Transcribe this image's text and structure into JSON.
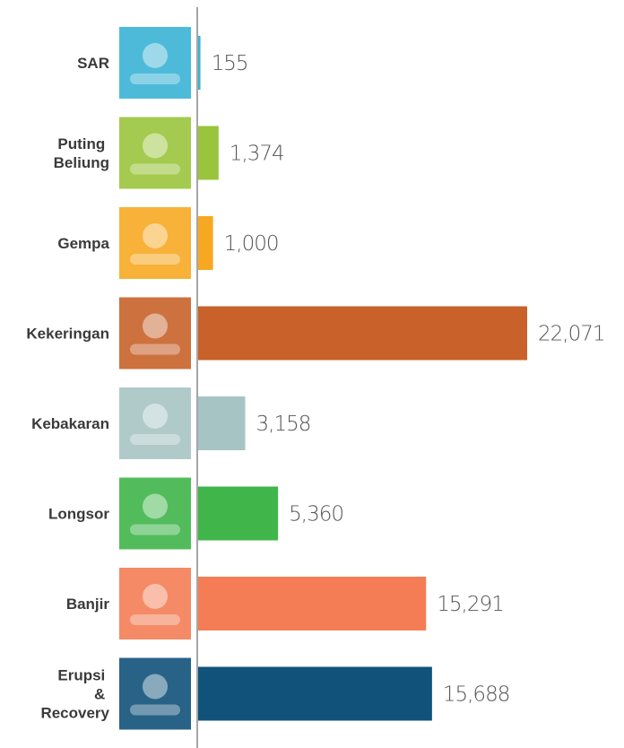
{
  "chart_data": {
    "type": "bar",
    "orientation": "horizontal",
    "categories": [
      "SAR",
      "Puting Beliung",
      "Gempa",
      "Kekeringan",
      "Kebakaran",
      "Longsor",
      "Banjir",
      "Erupsi & Recovery"
    ],
    "values": [
      155,
      1374,
      1000,
      22071,
      3158,
      5360,
      15291,
      15688
    ],
    "value_labels": [
      "155",
      "1,374",
      "1,000",
      "22,071",
      "3,158",
      "5,360",
      "15,291",
      "15,688"
    ],
    "colors": [
      "#3bb3d6",
      "#9ac43c",
      "#f7a823",
      "#c8622a",
      "#a7c4c4",
      "#3fb54a",
      "#f47d55",
      "#11527a"
    ]
  }
}
